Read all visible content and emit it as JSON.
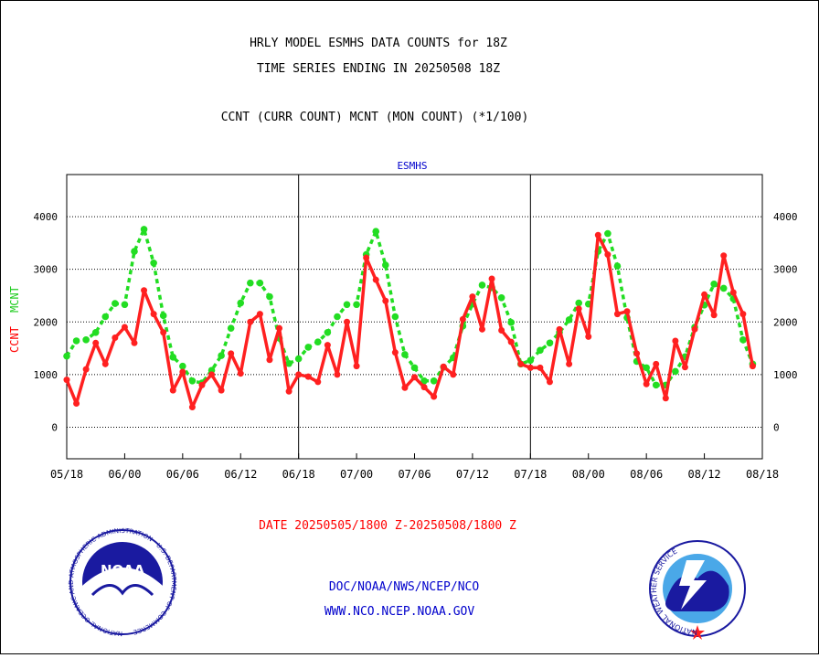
{
  "header": {
    "title_line1": "HRLY MODEL ESMHS DATA COUNTS for 18Z",
    "title_line2": "TIME SERIES ENDING IN 20250508 18Z",
    "subtitle": "CCNT (CURR COUNT) MCNT (MON COUNT) (*1/100)"
  },
  "footer": {
    "date_range": "DATE 20250505/1800 Z-20250508/1800 Z",
    "org": "DOC/NOAA/NWS/NCEP/NCO",
    "url": "WWW.NCO.NCEP.NOAA.GOV"
  },
  "logos": {
    "noaa_text": "NOAA",
    "noaa_ring": "NATIONAL OCEANIC AND ATMOSPHERIC ADMINISTRATION · U.S. DEPARTMENT OF COMMERCE",
    "nws_ring": "NATIONAL WEATHER SERVICE"
  },
  "colors": {
    "ccnt": "#ff2020",
    "mcnt": "#22dd22",
    "title": "#000000",
    "date": "#ff0000",
    "footer": "#0000cc"
  },
  "chart_data": {
    "type": "line",
    "panel_label": "ESMHS",
    "ylabel_ccnt": "CCNT",
    "ylabel_mcnt": "MCNT",
    "ylim": [
      -600,
      4800
    ],
    "y_ticks": [
      0,
      1000,
      2000,
      3000,
      4000
    ],
    "x_ticks": [
      "05/18",
      "06/00",
      "06/06",
      "06/12",
      "06/18",
      "07/00",
      "07/06",
      "07/12",
      "07/18",
      "08/00",
      "08/06",
      "08/12",
      "08/18"
    ],
    "x_count": 72,
    "grid": true,
    "series": [
      {
        "name": "CCNT",
        "values": [
          900,
          450,
          1100,
          1600,
          1200,
          1700,
          1900,
          1600,
          2600,
          2150,
          1800,
          700,
          1050,
          380,
          800,
          1000,
          700,
          1400,
          1020,
          2000,
          2150,
          1280,
          1880,
          680,
          1000,
          960,
          860,
          1560,
          1000,
          2000,
          1160,
          3220,
          2800,
          2400,
          1420,
          750,
          950,
          760,
          580,
          1150,
          1000,
          2050,
          2480,
          1860,
          2820,
          1840,
          1620,
          1200,
          1130,
          1130,
          860,
          1860,
          1200,
          2250,
          1720,
          3650,
          3280,
          2150,
          2200,
          1400,
          820,
          1200,
          550,
          1640,
          1140,
          1860,
          2520,
          2130,
          3260,
          2560,
          2150,
          1160
        ]
      },
      {
        "name": "MCNT",
        "values": [
          1350,
          1640,
          1660,
          1800,
          2100,
          2350,
          2330,
          3340,
          3760,
          3120,
          2120,
          1330,
          1160,
          880,
          840,
          1080,
          1360,
          1880,
          2360,
          2740,
          2740,
          2480,
          1690,
          1210,
          1300,
          1520,
          1620,
          1800,
          2100,
          2330,
          2330,
          3280,
          3720,
          3080,
          2100,
          1380,
          1130,
          880,
          880,
          1140,
          1320,
          1920,
          2340,
          2700,
          2650,
          2460,
          1990,
          1200,
          1270,
          1460,
          1600,
          1800,
          2040,
          2360,
          2340,
          3340,
          3680,
          3060,
          2080,
          1250,
          1130,
          800,
          800,
          1060,
          1340,
          1900,
          2320,
          2720,
          2640,
          2440,
          1660,
          1200
        ]
      }
    ]
  }
}
